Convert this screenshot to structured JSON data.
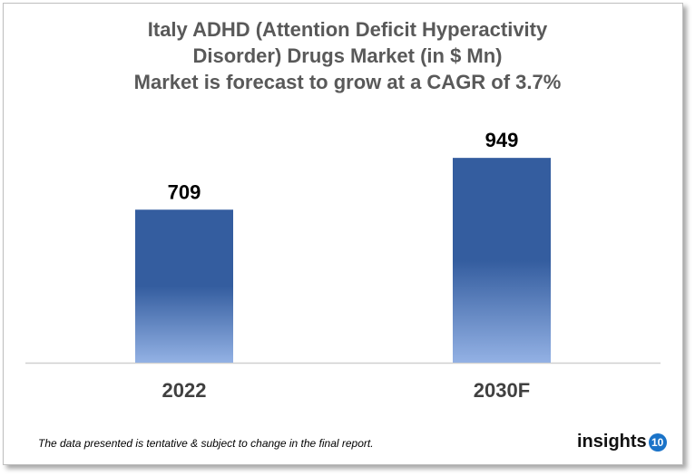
{
  "chart_data": {
    "type": "bar",
    "title": "Italy ADHD (Attention Deficit Hyperactivity Disorder) Drugs Market (in $ Mn)",
    "subtitle": "Market is forecast to grow at a CAGR of 3.7%",
    "title_lines": [
      "Italy ADHD (Attention Deficit Hyperactivity",
      "Disorder) Drugs Market (in $ Mn)",
      "Market is forecast to grow at a CAGR of 3.7%"
    ],
    "categories": [
      "2022",
      "2030F"
    ],
    "values": [
      709,
      949
    ],
    "data_labels": [
      "709",
      "949"
    ],
    "ylim": [
      0,
      1000
    ],
    "grid": false,
    "legend": "none",
    "colors": {
      "bar_top": "#345D9F",
      "bar_bottom": "#93B1E4",
      "title": "#595959"
    }
  },
  "footer": {
    "note": "The data presented is tentative & subject to change in the final report."
  },
  "logo": {
    "text": "insights",
    "badge": "10"
  }
}
